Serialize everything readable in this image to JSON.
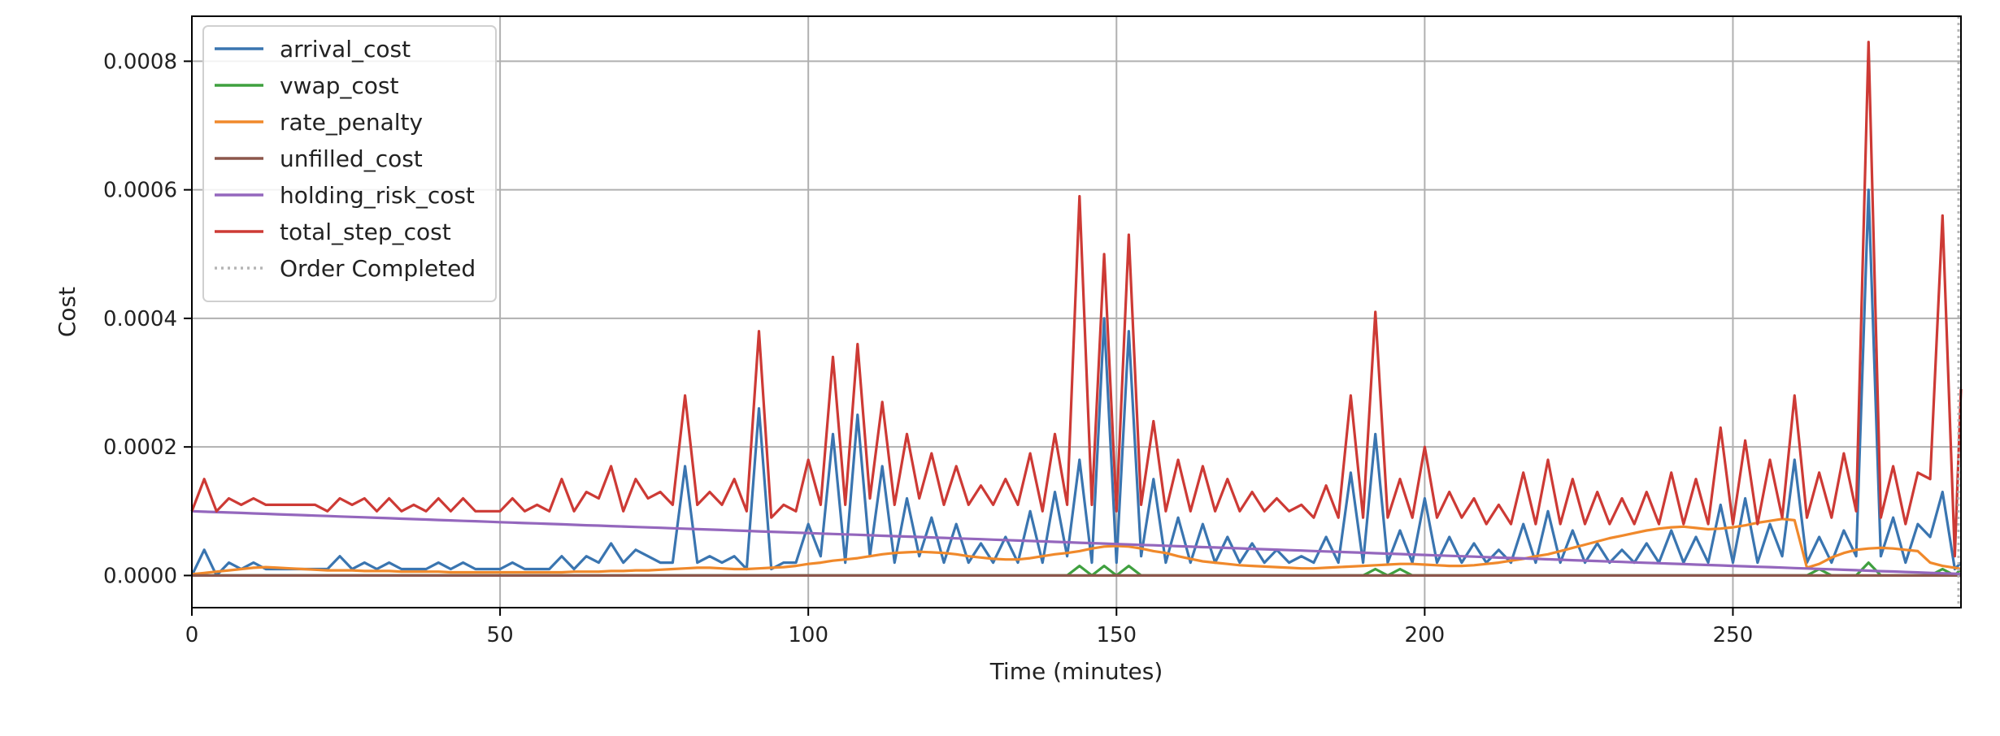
{
  "chart_data": {
    "type": "line",
    "title": "",
    "xlabel": "Time (minutes)",
    "ylabel": "Cost",
    "xlim": [
      0,
      287
    ],
    "ylim": [
      -5e-05,
      0.00087
    ],
    "x_ticks": [
      {
        "value": 0,
        "label": "0"
      },
      {
        "value": 50,
        "label": "50"
      },
      {
        "value": 100,
        "label": "100"
      },
      {
        "value": 150,
        "label": "150"
      },
      {
        "value": 200,
        "label": "200"
      },
      {
        "value": 250,
        "label": "250"
      }
    ],
    "y_ticks": [
      {
        "value": 0,
        "label": "0.0000"
      },
      {
        "value": 0.0002,
        "label": "0.0002"
      },
      {
        "value": 0.0004,
        "label": "0.0004"
      },
      {
        "value": 0.0006,
        "label": "0.0006"
      },
      {
        "value": 0.0008,
        "label": "0.0008"
      }
    ],
    "grid": true,
    "legend_position": "top-left",
    "x": [
      0,
      2,
      4,
      6,
      8,
      10,
      12,
      14,
      16,
      18,
      20,
      22,
      24,
      26,
      28,
      30,
      32,
      34,
      36,
      38,
      40,
      42,
      44,
      46,
      48,
      50,
      52,
      54,
      56,
      58,
      60,
      62,
      64,
      66,
      68,
      70,
      72,
      74,
      76,
      78,
      80,
      82,
      84,
      86,
      88,
      90,
      92,
      94,
      96,
      98,
      100,
      102,
      104,
      106,
      108,
      110,
      112,
      114,
      116,
      118,
      120,
      122,
      124,
      126,
      128,
      130,
      132,
      134,
      136,
      138,
      140,
      142,
      144,
      146,
      148,
      150,
      152,
      154,
      156,
      158,
      160,
      162,
      164,
      166,
      168,
      170,
      172,
      174,
      176,
      178,
      180,
      182,
      184,
      186,
      188,
      190,
      192,
      194,
      196,
      198,
      200,
      202,
      204,
      206,
      208,
      210,
      212,
      214,
      216,
      218,
      220,
      222,
      224,
      226,
      228,
      230,
      232,
      234,
      236,
      238,
      240,
      242,
      244,
      246,
      248,
      250,
      252,
      254,
      256,
      258,
      260,
      262,
      264,
      266,
      268,
      270,
      272,
      274,
      276,
      278,
      280,
      282,
      284,
      286,
      287
    ],
    "series": [
      {
        "name": "arrival_cost",
        "color": "#3a75b0",
        "values": [
          0,
          4e-05,
          0,
          2e-05,
          1e-05,
          2e-05,
          1e-05,
          1e-05,
          1e-05,
          1e-05,
          1e-05,
          1e-05,
          3e-05,
          1e-05,
          2e-05,
          1e-05,
          2e-05,
          1e-05,
          1e-05,
          1e-05,
          2e-05,
          1e-05,
          2e-05,
          1e-05,
          1e-05,
          1e-05,
          2e-05,
          1e-05,
          1e-05,
          1e-05,
          3e-05,
          1e-05,
          3e-05,
          2e-05,
          5e-05,
          2e-05,
          4e-05,
          3e-05,
          2e-05,
          2e-05,
          0.00017,
          2e-05,
          3e-05,
          2e-05,
          3e-05,
          1e-05,
          0.00026,
          1e-05,
          2e-05,
          2e-05,
          8e-05,
          3e-05,
          0.00022,
          2e-05,
          0.00025,
          3e-05,
          0.00017,
          2e-05,
          0.00012,
          3e-05,
          9e-05,
          2e-05,
          8e-05,
          2e-05,
          5e-05,
          2e-05,
          6e-05,
          2e-05,
          0.0001,
          2e-05,
          0.00013,
          3e-05,
          0.00018,
          2e-05,
          0.0004,
          2e-05,
          0.00038,
          3e-05,
          0.00015,
          2e-05,
          9e-05,
          2e-05,
          8e-05,
          2e-05,
          6e-05,
          2e-05,
          5e-05,
          2e-05,
          4e-05,
          2e-05,
          3e-05,
          2e-05,
          6e-05,
          2e-05,
          0.00016,
          2e-05,
          0.00022,
          2e-05,
          7e-05,
          2e-05,
          0.00012,
          2e-05,
          6e-05,
          2e-05,
          5e-05,
          2e-05,
          4e-05,
          2e-05,
          8e-05,
          2e-05,
          0.0001,
          2e-05,
          7e-05,
          2e-05,
          5e-05,
          2e-05,
          4e-05,
          2e-05,
          5e-05,
          2e-05,
          7e-05,
          2e-05,
          6e-05,
          2e-05,
          0.00011,
          2e-05,
          0.00012,
          2e-05,
          8e-05,
          3e-05,
          0.00018,
          2e-05,
          6e-05,
          2e-05,
          7e-05,
          3e-05,
          0.0006,
          3e-05,
          9e-05,
          2e-05,
          8e-05,
          6e-05,
          0.00013,
          1e-05,
          2e-05
        ]
      },
      {
        "name": "vwap_cost",
        "color": "#3fa03f",
        "values": [
          0,
          0,
          0,
          0,
          0,
          0,
          0,
          0,
          0,
          0,
          0,
          0,
          0,
          0,
          0,
          0,
          0,
          0,
          0,
          0,
          0,
          0,
          0,
          0,
          0,
          0,
          0,
          0,
          0,
          0,
          0,
          0,
          0,
          0,
          0,
          0,
          0,
          0,
          0,
          0,
          0,
          0,
          0,
          0,
          0,
          0,
          0,
          0,
          0,
          0,
          0,
          0,
          0,
          0,
          0,
          0,
          0,
          0,
          0,
          0,
          0,
          0,
          0,
          0,
          0,
          0,
          0,
          0,
          0,
          0,
          0,
          0,
          1.5e-05,
          0,
          1.5e-05,
          0,
          1.5e-05,
          0,
          0,
          0,
          0,
          0,
          0,
          0,
          0,
          0,
          0,
          0,
          0,
          0,
          0,
          0,
          0,
          0,
          0,
          0,
          1e-05,
          0,
          1e-05,
          0,
          0,
          0,
          0,
          0,
          0,
          0,
          0,
          0,
          0,
          0,
          0,
          0,
          0,
          0,
          0,
          0,
          0,
          0,
          0,
          0,
          0,
          0,
          0,
          0,
          0,
          0,
          0,
          0,
          0,
          0,
          0,
          0,
          1e-05,
          0,
          0,
          0,
          2e-05,
          0,
          0,
          0,
          0,
          0,
          1e-05,
          0,
          1e-05
        ]
      },
      {
        "name": "rate_penalty",
        "color": "#f0892b",
        "values": [
          2e-06,
          4e-06,
          6e-06,
          8e-06,
          1e-05,
          1.2e-05,
          1.3e-05,
          1.2e-05,
          1.1e-05,
          1e-05,
          9e-06,
          8e-06,
          8e-06,
          8e-06,
          7e-06,
          7e-06,
          7e-06,
          6e-06,
          6e-06,
          6e-06,
          6e-06,
          5e-06,
          5e-06,
          5e-06,
          5e-06,
          5e-06,
          5e-06,
          5e-06,
          5e-06,
          5e-06,
          5e-06,
          6e-06,
          6e-06,
          6e-06,
          7e-06,
          7e-06,
          8e-06,
          8e-06,
          9e-06,
          1e-05,
          1.1e-05,
          1.2e-05,
          1.2e-05,
          1.1e-05,
          1e-05,
          1e-05,
          1.1e-05,
          1.2e-05,
          1.3e-05,
          1.5e-05,
          1.8e-05,
          2e-05,
          2.3e-05,
          2.5e-05,
          2.7e-05,
          3e-05,
          3.3e-05,
          3.5e-05,
          3.6e-05,
          3.7e-05,
          3.6e-05,
          3.5e-05,
          3.3e-05,
          3e-05,
          2.8e-05,
          2.6e-05,
          2.5e-05,
          2.5e-05,
          2.7e-05,
          3e-05,
          3.3e-05,
          3.5e-05,
          3.8e-05,
          4.2e-05,
          4.5e-05,
          4.6e-05,
          4.5e-05,
          4.2e-05,
          3.8e-05,
          3.5e-05,
          3e-05,
          2.6e-05,
          2.2e-05,
          2e-05,
          1.8e-05,
          1.6e-05,
          1.5e-05,
          1.4e-05,
          1.3e-05,
          1.2e-05,
          1.1e-05,
          1.1e-05,
          1.2e-05,
          1.3e-05,
          1.4e-05,
          1.5e-05,
          1.6e-05,
          1.7e-05,
          1.8e-05,
          1.8e-05,
          1.7e-05,
          1.6e-05,
          1.5e-05,
          1.5e-05,
          1.6e-05,
          1.8e-05,
          2e-05,
          2.3e-05,
          2.6e-05,
          3e-05,
          3.3e-05,
          3.8e-05,
          4.3e-05,
          4.8e-05,
          5.3e-05,
          5.8e-05,
          6.2e-05,
          6.6e-05,
          7e-05,
          7.3e-05,
          7.5e-05,
          7.6e-05,
          7.4e-05,
          7.2e-05,
          7.3e-05,
          7.5e-05,
          7.8e-05,
          8.2e-05,
          8.5e-05,
          8.8e-05,
          8.6e-05,
          1.2e-05,
          1.8e-05,
          2.8e-05,
          3.5e-05,
          4e-05,
          4.2e-05,
          4.3e-05,
          4.2e-05,
          4e-05,
          3.8e-05,
          2e-05,
          1.5e-05,
          1.2e-05,
          1e-05
        ]
      },
      {
        "name": "unfilled_cost",
        "color": "#8c564b",
        "values": [
          0,
          0,
          0,
          0,
          0,
          0,
          0,
          0,
          0,
          0,
          0,
          0,
          0,
          0,
          0,
          0,
          0,
          0,
          0,
          0,
          0,
          0,
          0,
          0,
          0,
          0,
          0,
          0,
          0,
          0,
          0,
          0,
          0,
          0,
          0,
          0,
          0,
          0,
          0,
          0,
          0,
          0,
          0,
          0,
          0,
          0,
          0,
          0,
          0,
          0,
          0,
          0,
          0,
          0,
          0,
          0,
          0,
          0,
          0,
          0,
          0,
          0,
          0,
          0,
          0,
          0,
          0,
          0,
          0,
          0,
          0,
          0,
          0,
          0,
          0,
          0,
          0,
          0,
          0,
          0,
          0,
          0,
          0,
          0,
          0,
          0,
          0,
          0,
          0,
          0,
          0,
          0,
          0,
          0,
          0,
          0,
          0,
          0,
          0,
          0,
          0,
          0,
          0,
          0,
          0,
          0,
          0,
          0,
          0,
          0,
          0,
          0,
          0,
          0,
          0,
          0,
          0,
          0,
          0,
          0,
          0,
          0,
          0,
          0,
          0,
          0,
          0,
          0,
          0,
          0,
          0,
          0,
          0,
          0,
          0,
          0,
          0,
          0,
          0,
          0,
          0,
          0,
          0,
          0,
          0
        ]
      },
      {
        "name": "holding_risk_cost",
        "color": "#9467bd",
        "values": [
          0.0001,
          9.93e-05,
          9.86e-05,
          9.8e-05,
          9.73e-05,
          9.66e-05,
          9.59e-05,
          9.52e-05,
          9.46e-05,
          9.39e-05,
          9.32e-05,
          9.25e-05,
          9.18e-05,
          9.12e-05,
          9.05e-05,
          8.98e-05,
          8.91e-05,
          8.84e-05,
          8.78e-05,
          8.71e-05,
          8.64e-05,
          8.57e-05,
          8.5e-05,
          8.44e-05,
          8.37e-05,
          8.3e-05,
          8.23e-05,
          8.16e-05,
          8.1e-05,
          8.03e-05,
          7.96e-05,
          7.89e-05,
          7.82e-05,
          7.76e-05,
          7.69e-05,
          7.62e-05,
          7.55e-05,
          7.48e-05,
          7.42e-05,
          7.35e-05,
          7.28e-05,
          7.21e-05,
          7.14e-05,
          7.08e-05,
          7.01e-05,
          6.94e-05,
          6.87e-05,
          6.8e-05,
          6.74e-05,
          6.67e-05,
          6.6e-05,
          6.53e-05,
          6.46e-05,
          6.4e-05,
          6.33e-05,
          6.26e-05,
          6.19e-05,
          6.12e-05,
          6.06e-05,
          5.99e-05,
          5.92e-05,
          5.85e-05,
          5.78e-05,
          5.72e-05,
          5.65e-05,
          5.58e-05,
          5.51e-05,
          5.44e-05,
          5.38e-05,
          5.31e-05,
          5.24e-05,
          5.17e-05,
          5.1e-05,
          5.04e-05,
          4.97e-05,
          4.9e-05,
          4.83e-05,
          4.76e-05,
          4.7e-05,
          4.63e-05,
          4.56e-05,
          4.49e-05,
          4.42e-05,
          4.36e-05,
          4.29e-05,
          4.22e-05,
          4.15e-05,
          4.08e-05,
          4.02e-05,
          3.95e-05,
          3.88e-05,
          3.81e-05,
          3.74e-05,
          3.68e-05,
          3.61e-05,
          3.54e-05,
          3.47e-05,
          3.4e-05,
          3.34e-05,
          3.27e-05,
          3.2e-05,
          3.13e-05,
          3.06e-05,
          3e-05,
          2.93e-05,
          2.86e-05,
          2.79e-05,
          2.72e-05,
          2.66e-05,
          2.59e-05,
          2.52e-05,
          2.45e-05,
          2.38e-05,
          2.32e-05,
          2.25e-05,
          2.18e-05,
          2.11e-05,
          2.04e-05,
          1.98e-05,
          1.91e-05,
          1.84e-05,
          1.77e-05,
          1.7e-05,
          1.64e-05,
          1.57e-05,
          1.5e-05,
          1.43e-05,
          1.36e-05,
          1.3e-05,
          1.23e-05,
          1.16e-05,
          1.09e-05,
          1.02e-05,
          9.6e-06,
          8.9e-06,
          8.2e-06,
          7.5e-06,
          6.8e-06,
          6.2e-06,
          5.5e-06,
          4.8e-06,
          4.1e-06,
          3.4e-06,
          2.8e-06,
          2.4e-06
        ]
      },
      {
        "name": "total_step_cost",
        "color": "#cd3a35",
        "values": [
          0.0001,
          0.00015,
          0.0001,
          0.00012,
          0.00011,
          0.00012,
          0.00011,
          0.00011,
          0.00011,
          0.00011,
          0.00011,
          0.0001,
          0.00012,
          0.00011,
          0.00012,
          0.0001,
          0.00012,
          0.0001,
          0.00011,
          0.0001,
          0.00012,
          0.0001,
          0.00012,
          0.0001,
          0.0001,
          0.0001,
          0.00012,
          0.0001,
          0.00011,
          0.0001,
          0.00015,
          0.0001,
          0.00013,
          0.00012,
          0.00017,
          0.0001,
          0.00015,
          0.00012,
          0.00013,
          0.00011,
          0.00028,
          0.00011,
          0.00013,
          0.00011,
          0.00015,
          0.0001,
          0.00038,
          9e-05,
          0.00011,
          0.0001,
          0.00018,
          0.00011,
          0.00034,
          0.00011,
          0.00036,
          0.00012,
          0.00027,
          0.00011,
          0.00022,
          0.00012,
          0.00019,
          0.00011,
          0.00017,
          0.00011,
          0.00014,
          0.00011,
          0.00015,
          0.00011,
          0.00019,
          0.0001,
          0.00022,
          0.00011,
          0.00059,
          0.00011,
          0.0005,
          0.0001,
          0.00053,
          0.00011,
          0.00024,
          0.0001,
          0.00018,
          0.0001,
          0.00017,
          0.0001,
          0.00015,
          0.0001,
          0.00013,
          0.0001,
          0.00012,
          0.0001,
          0.00011,
          9e-05,
          0.00014,
          9e-05,
          0.00028,
          9e-05,
          0.00041,
          9e-05,
          0.00015,
          9e-05,
          0.0002,
          9e-05,
          0.00013,
          9e-05,
          0.00012,
          8e-05,
          0.00011,
          8e-05,
          0.00016,
          8e-05,
          0.00018,
          8e-05,
          0.00015,
          8e-05,
          0.00013,
          8e-05,
          0.00012,
          8e-05,
          0.00013,
          8e-05,
          0.00016,
          8e-05,
          0.00015,
          8e-05,
          0.00023,
          8e-05,
          0.00021,
          8e-05,
          0.00018,
          9e-05,
          0.00028,
          9e-05,
          0.00016,
          9e-05,
          0.00019,
          0.0001,
          0.00083,
          9e-05,
          0.00017,
          8e-05,
          0.00016,
          0.00015,
          0.00056,
          3e-05,
          0.00029
        ]
      }
    ],
    "vlines": [
      {
        "name": "Order Completed",
        "x": 287,
        "color": "#b5b5b5",
        "style": "dotted"
      }
    ]
  }
}
